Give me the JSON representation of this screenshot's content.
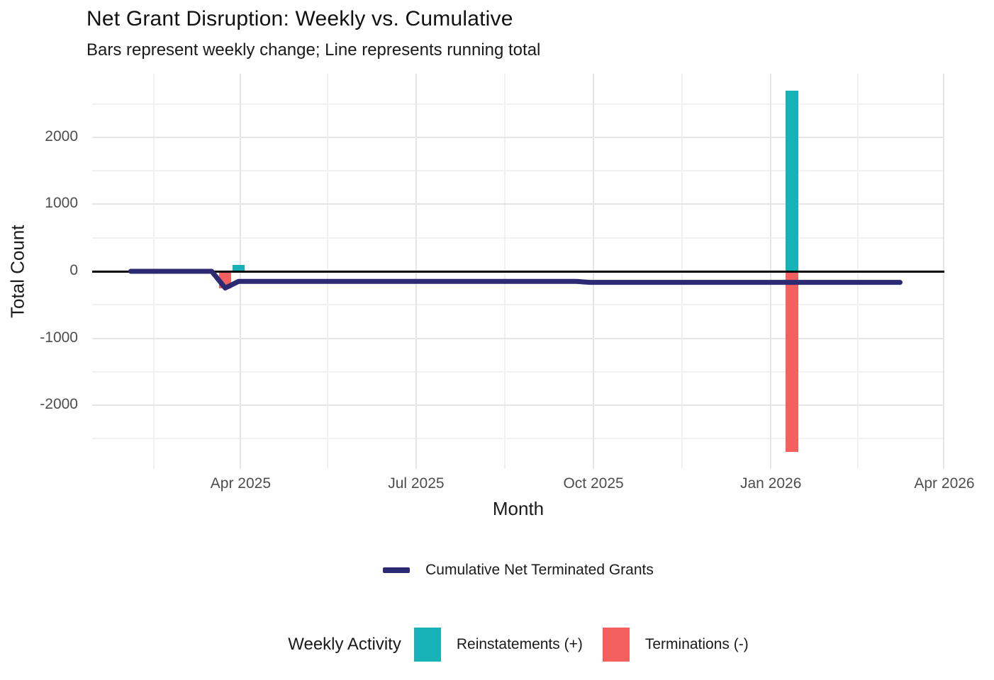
{
  "colors": {
    "reinstatements": "#17B2B8",
    "terminations": "#F4605D",
    "cumulative_line": "#2B2A72",
    "zero_line": "#000000",
    "grid_major": "#E5E5E5",
    "grid_minor": "#F1F1F1",
    "tick_text": "#4D4D4D",
    "title_text": "#111111"
  },
  "chart_data": {
    "type": "combo_bar_line",
    "title": "Net Grant Disruption: Weekly vs. Cumulative",
    "subtitle": "Bars represent weekly change; Line represents running total",
    "xlabel": "Month",
    "ylabel": "Total Count",
    "x_domain": [
      "2025-01-14",
      "2026-04-01"
    ],
    "ylim": [
      -2950,
      2950
    ],
    "grid": true,
    "y_major": [
      2000,
      1000,
      0,
      -1000,
      -2000
    ],
    "y_tick_labels": [
      "2000",
      "1000",
      "0",
      "-1000",
      "-2000"
    ],
    "y_minor": [
      2500,
      1500,
      500,
      -500,
      -1500,
      -2500
    ],
    "x_major": [
      "2025-04-01",
      "2025-07-01",
      "2025-10-01",
      "2026-01-01",
      "2026-04-01"
    ],
    "x_tick_labels": [
      "Apr 2025",
      "Jul 2025",
      "Oct 2025",
      "Jan 2026",
      "Apr 2026"
    ],
    "x_minor": [
      "2025-02-15",
      "2025-05-16",
      "2025-08-16",
      "2025-11-16",
      "2026-02-15"
    ],
    "zero_line_value": 0,
    "bar_width_days": 6.5,
    "bars": [
      {
        "week": "2025-03-24",
        "series": "terminations",
        "value": -250
      },
      {
        "week": "2025-03-31",
        "series": "reinstatements",
        "value": 100
      },
      {
        "week": "2026-01-12",
        "series": "reinstatements",
        "value": 2700
      },
      {
        "week": "2026-01-12",
        "series": "terminations",
        "value": -2700
      }
    ],
    "line_series": {
      "name": "Cumulative Net Terminated Grants",
      "points": [
        {
          "date": "2025-02-03",
          "value": 0
        },
        {
          "date": "2025-03-17",
          "value": 0
        },
        {
          "date": "2025-03-24",
          "value": -250
        },
        {
          "date": "2025-03-31",
          "value": -150
        },
        {
          "date": "2025-09-22",
          "value": -150
        },
        {
          "date": "2025-09-29",
          "value": -165
        },
        {
          "date": "2026-03-09",
          "value": -165
        }
      ]
    },
    "legend_fill": {
      "title": "Weekly Activity",
      "items": [
        {
          "label": "Reinstatements (+)",
          "series": "reinstatements"
        },
        {
          "label": "Terminations (-)",
          "series": "terminations"
        }
      ]
    },
    "legend_position": "bottom"
  }
}
